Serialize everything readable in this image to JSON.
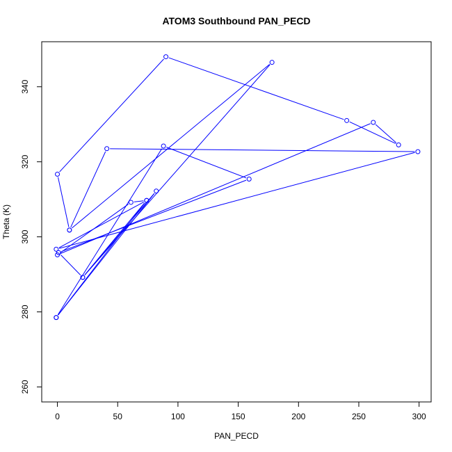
{
  "chart_data": {
    "type": "line",
    "title": "ATOM3 Southbound PAN_PECD",
    "xlabel": "PAN_PECD",
    "ylabel": "Theta (K)",
    "xlim": [
      -13,
      310
    ],
    "ylim": [
      256,
      352
    ],
    "xticks": [
      0,
      50,
      100,
      150,
      200,
      250,
      300
    ],
    "yticks": [
      260,
      280,
      300,
      320,
      340
    ],
    "grid": false,
    "legend": "none",
    "color": "#0000ff",
    "series": [
      {
        "points": [
          [
            -1,
            278.5
          ],
          [
            82,
            312.2
          ],
          [
            21,
            289.2
          ],
          [
            178,
            346.5
          ],
          [
            10,
            301.8
          ],
          [
            0,
            316.7
          ],
          [
            90,
            348.0
          ],
          [
            240,
            331.0
          ],
          [
            283,
            324.5
          ],
          [
            262,
            330.5
          ],
          [
            0,
            295.2
          ],
          [
            61,
            309.2
          ],
          [
            74,
            309.7
          ],
          [
            -1,
            278.5
          ],
          [
            88,
            324.2
          ],
          [
            159,
            315.4
          ],
          [
            1,
            295.8
          ],
          [
            21,
            289.2
          ],
          [
            74,
            309.7
          ],
          [
            -1,
            296.7
          ],
          [
            299,
            322.7
          ],
          [
            41,
            323.5
          ],
          [
            10,
            301.8
          ]
        ]
      }
    ]
  }
}
